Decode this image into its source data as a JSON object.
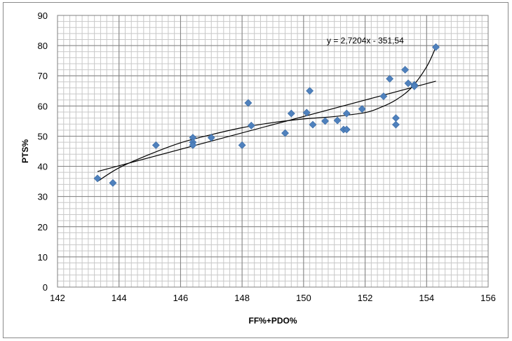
{
  "chart_data": {
    "type": "scatter",
    "title": "",
    "xlabel": "FF%+PDO%",
    "ylabel": "PTS%",
    "xlim": [
      142,
      156
    ],
    "ylim": [
      0,
      90
    ],
    "x_ticks": [
      "142",
      "144",
      "146",
      "148",
      "150",
      "152",
      "154",
      "156"
    ],
    "y_ticks": [
      "0",
      "10",
      "20",
      "30",
      "40",
      "50",
      "60",
      "70",
      "80",
      "90"
    ],
    "grid": true,
    "legend": "none",
    "marker_color": "#4f81bd",
    "points": [
      {
        "x": 143.3,
        "y": 36
      },
      {
        "x": 143.8,
        "y": 34.5
      },
      {
        "x": 145.2,
        "y": 47
      },
      {
        "x": 146.4,
        "y": 49.5
      },
      {
        "x": 146.4,
        "y": 48
      },
      {
        "x": 146.4,
        "y": 47
      },
      {
        "x": 147.0,
        "y": 49.5
      },
      {
        "x": 148.0,
        "y": 47
      },
      {
        "x": 148.2,
        "y": 61
      },
      {
        "x": 148.3,
        "y": 53.5
      },
      {
        "x": 149.4,
        "y": 51
      },
      {
        "x": 149.6,
        "y": 57.5
      },
      {
        "x": 150.1,
        "y": 57.8
      },
      {
        "x": 150.2,
        "y": 65
      },
      {
        "x": 150.3,
        "y": 53.8
      },
      {
        "x": 150.7,
        "y": 55
      },
      {
        "x": 151.1,
        "y": 55.2
      },
      {
        "x": 151.3,
        "y": 52.2
      },
      {
        "x": 151.4,
        "y": 52.2
      },
      {
        "x": 151.4,
        "y": 57.5
      },
      {
        "x": 151.9,
        "y": 59
      },
      {
        "x": 152.6,
        "y": 63.2
      },
      {
        "x": 152.8,
        "y": 69
      },
      {
        "x": 153.0,
        "y": 56
      },
      {
        "x": 153.0,
        "y": 53.8
      },
      {
        "x": 153.3,
        "y": 72
      },
      {
        "x": 153.4,
        "y": 67.5
      },
      {
        "x": 153.6,
        "y": 67
      },
      {
        "x": 153.6,
        "y": 66.5
      },
      {
        "x": 154.3,
        "y": 79.5
      }
    ],
    "trendlines": [
      {
        "type": "linear",
        "slope": 2.7204,
        "intercept": -351.54,
        "x_range": [
          143.3,
          154.3
        ],
        "equation": "y = 2,7204x - 351,54"
      },
      {
        "type": "polynomial",
        "points": [
          [
            143.3,
            35
          ],
          [
            144,
            39.5
          ],
          [
            145,
            44
          ],
          [
            146,
            47.8
          ],
          [
            147,
            50.5
          ],
          [
            148,
            52.8
          ],
          [
            149,
            54.5
          ],
          [
            150,
            55.7
          ],
          [
            151,
            56.5
          ],
          [
            152,
            57.8
          ],
          [
            152.5,
            59.5
          ],
          [
            153,
            62
          ],
          [
            153.5,
            66
          ],
          [
            154,
            73
          ],
          [
            154.3,
            79.5
          ]
        ]
      }
    ],
    "marker_shape": "diamond",
    "line_color": "#000000"
  }
}
